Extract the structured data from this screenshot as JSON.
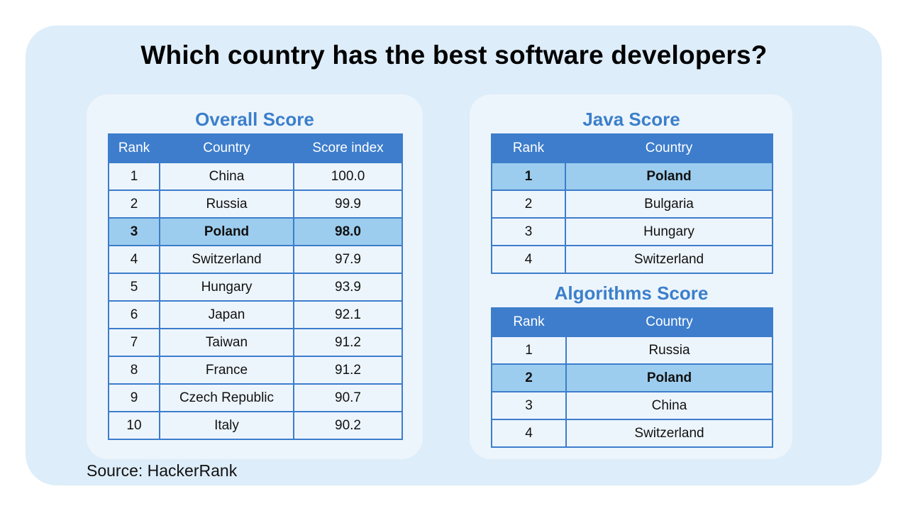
{
  "title": "Which country has the best software developers?",
  "source": "Source: HackerRank",
  "colors": {
    "background": "#ddedf9",
    "panel": "#edf5fc",
    "header": "#3d7dcc",
    "highlight": "#9dcdee",
    "section_title": "#3b7fcb"
  },
  "overall": {
    "title": "Overall Score",
    "headers": [
      "Rank",
      "Country",
      "Score index"
    ],
    "rows": [
      {
        "rank": "1",
        "country": "China",
        "score": "100.0",
        "highlight": false
      },
      {
        "rank": "2",
        "country": "Russia",
        "score": "99.9",
        "highlight": false
      },
      {
        "rank": "3",
        "country": "Poland",
        "score": "98.0",
        "highlight": true
      },
      {
        "rank": "4",
        "country": "Switzerland",
        "score": "97.9",
        "highlight": false
      },
      {
        "rank": "5",
        "country": "Hungary",
        "score": "93.9",
        "highlight": false
      },
      {
        "rank": "6",
        "country": "Japan",
        "score": "92.1",
        "highlight": false
      },
      {
        "rank": "7",
        "country": "Taiwan",
        "score": "91.2",
        "highlight": false
      },
      {
        "rank": "8",
        "country": "France",
        "score": "91.2",
        "highlight": false
      },
      {
        "rank": "9",
        "country": "Czech Republic",
        "score": "90.7",
        "highlight": false
      },
      {
        "rank": "10",
        "country": "Italy",
        "score": "90.2",
        "highlight": false
      }
    ]
  },
  "java": {
    "title": "Java Score",
    "headers": [
      "Rank",
      "Country"
    ],
    "rows": [
      {
        "rank": "1",
        "country": "Poland",
        "highlight": true
      },
      {
        "rank": "2",
        "country": "Bulgaria",
        "highlight": false
      },
      {
        "rank": "3",
        "country": "Hungary",
        "highlight": false
      },
      {
        "rank": "4",
        "country": "Switzerland",
        "highlight": false
      }
    ]
  },
  "algorithms": {
    "title": "Algorithms Score",
    "headers": [
      "Rank",
      "Country"
    ],
    "rows": [
      {
        "rank": "1",
        "country": "Russia",
        "highlight": false
      },
      {
        "rank": "2",
        "country": "Poland",
        "highlight": true
      },
      {
        "rank": "3",
        "country": "China",
        "highlight": false
      },
      {
        "rank": "4",
        "country": "Switzerland",
        "highlight": false
      }
    ]
  }
}
